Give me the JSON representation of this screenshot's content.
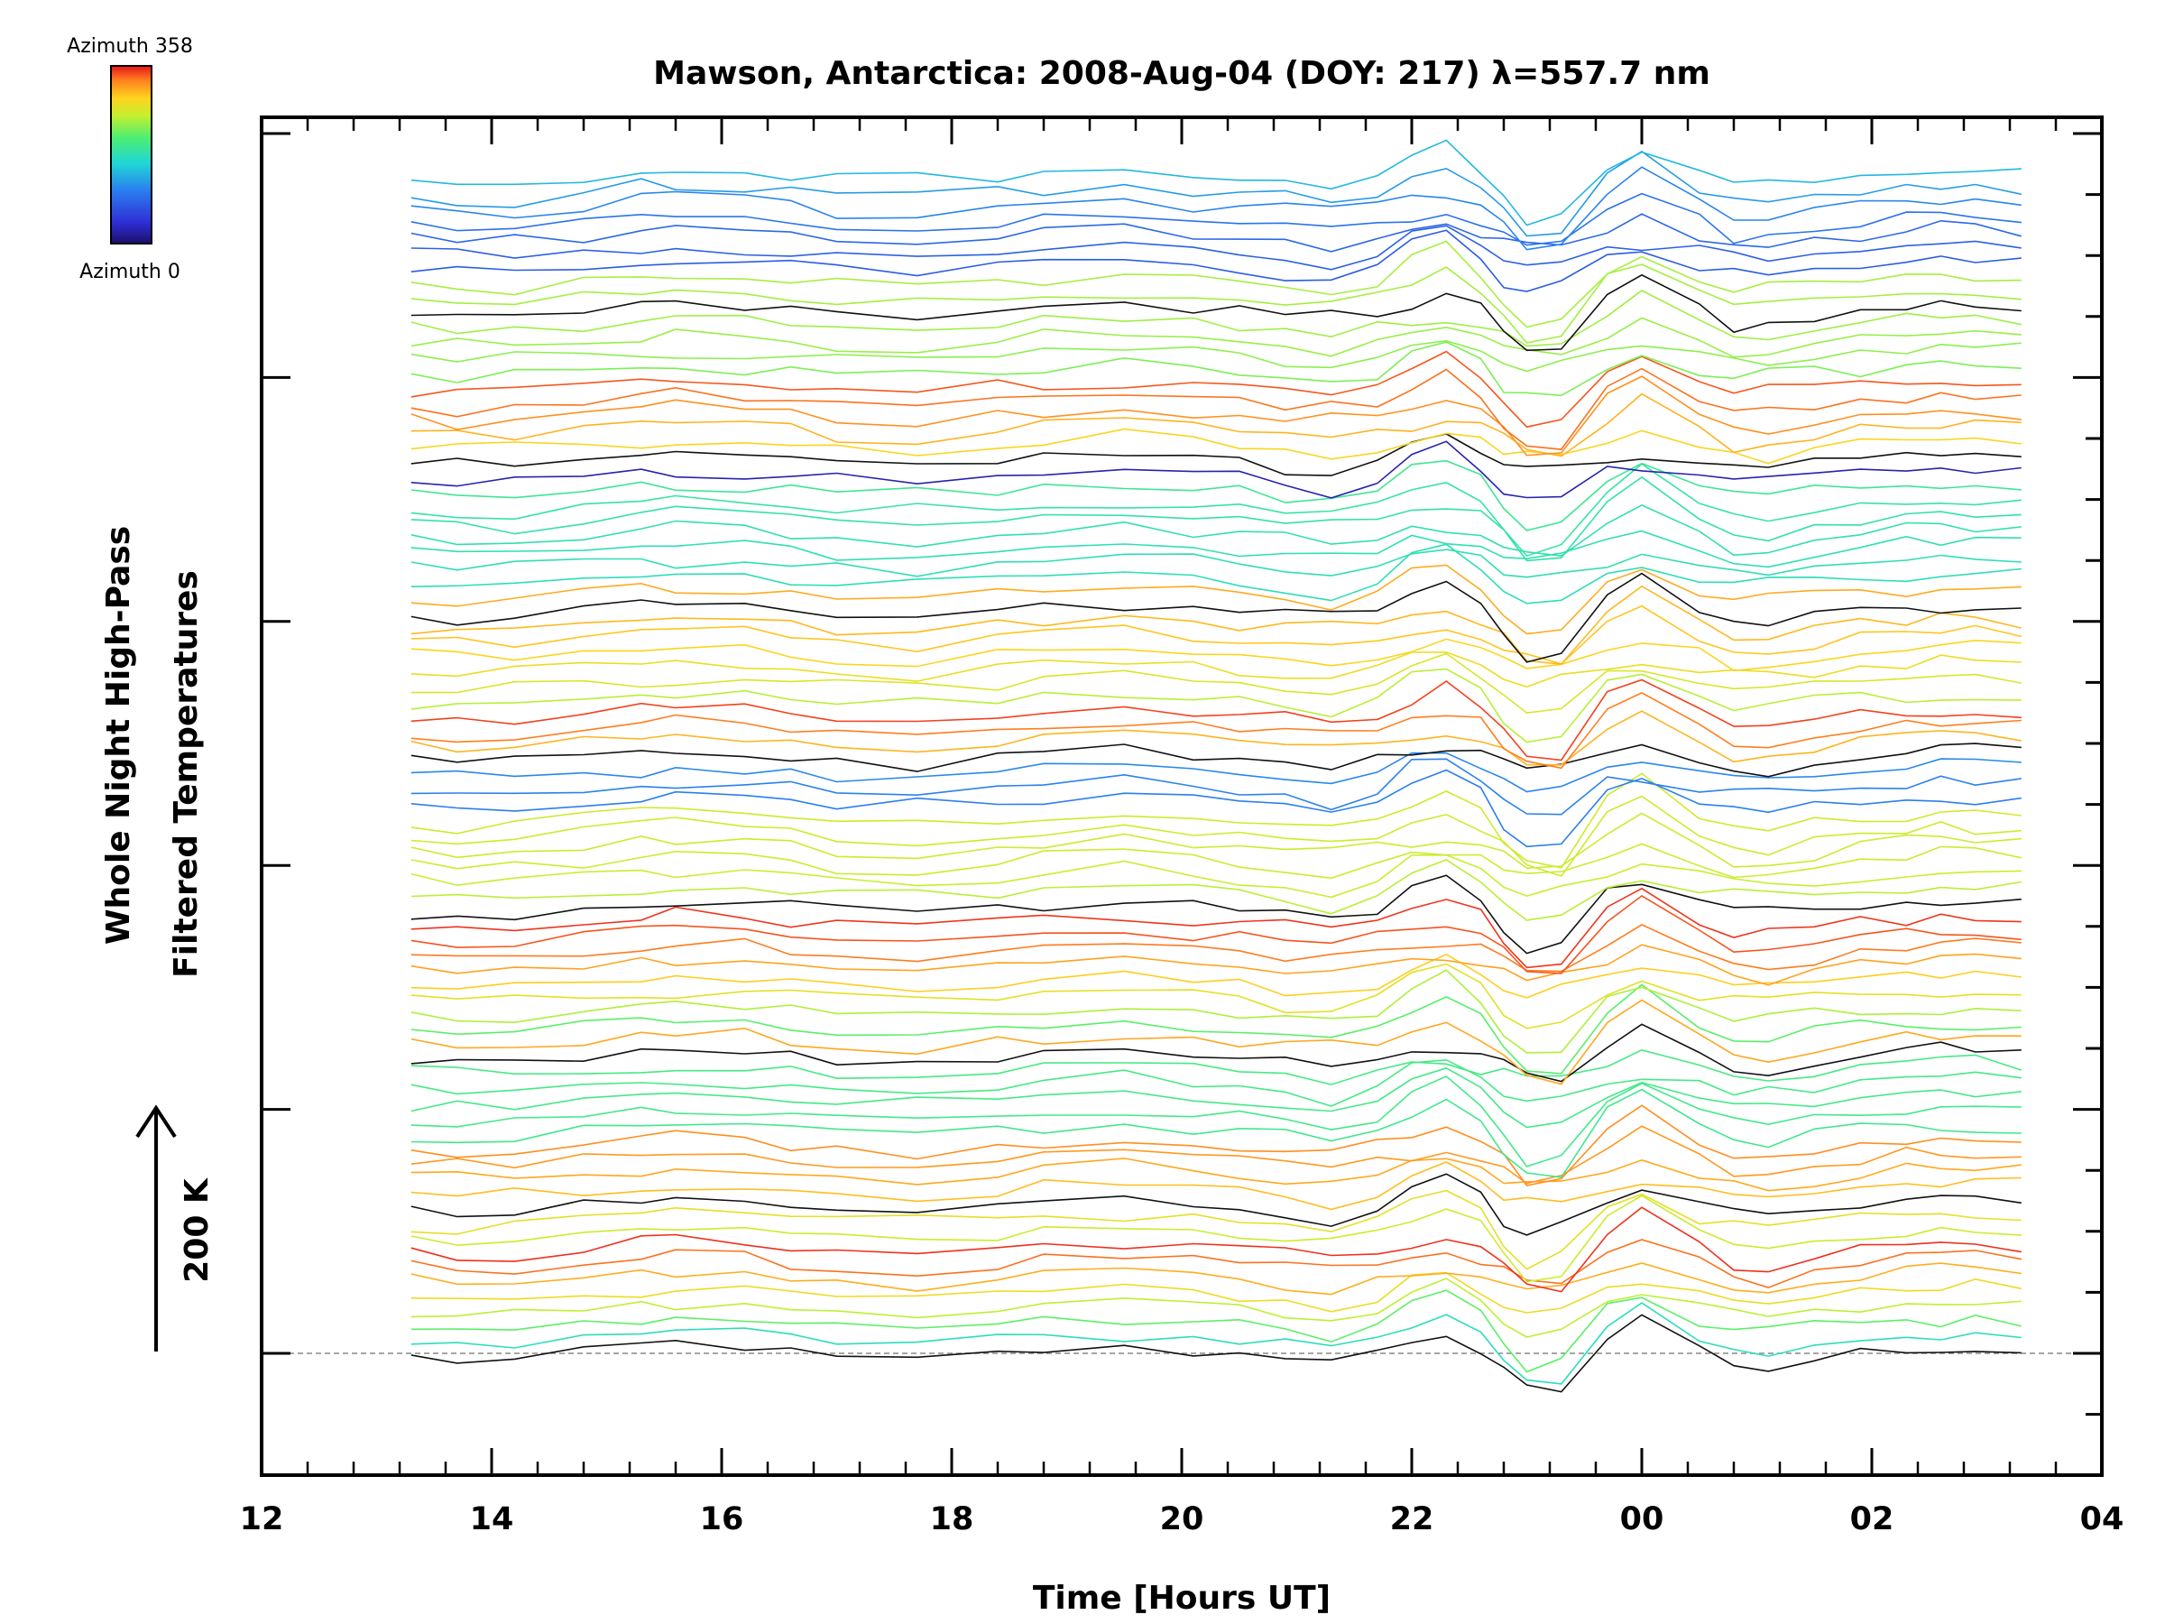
{
  "chart_data": {
    "type": "line",
    "title": "Mawson, Antarctica: 2008-Aug-04 (DOY: 217) λ=557.7 nm",
    "xlabel": "Time [Hours UT]",
    "ylabel_line1": "Whole Night High-Pass",
    "ylabel_line2": "Filtered Temperatures",
    "scale_bar_label": "200 K",
    "x_tick_labels": [
      "12",
      "14",
      "16",
      "18",
      "20",
      "22",
      "00",
      "02",
      "04"
    ],
    "xlim": [
      12,
      28
    ],
    "colorbar": {
      "top_label": "Azimuth 358",
      "bottom_label": "Azimuth 0",
      "colors": [
        "#1b0f6b",
        "#2f2fd6",
        "#2a7fef",
        "#1fd6d6",
        "#4fef6f",
        "#c6ef2f",
        "#ffd21f",
        "#ff7f1f",
        "#e8141c"
      ]
    },
    "baseline_style": "dashed",
    "time_samples": [
      13.3,
      13.7,
      14.2,
      14.8,
      15.3,
      15.6,
      16.2,
      16.6,
      17.0,
      17.7,
      18.4,
      18.8,
      19.5,
      20.1,
      20.5,
      20.9,
      21.3,
      21.7,
      22.0,
      22.3,
      22.6,
      22.8,
      23.0,
      23.3,
      23.7,
      24.0,
      24.5,
      24.8,
      25.1,
      25.5,
      25.9,
      26.3,
      26.6,
      26.9,
      27.3
    ],
    "series_count": 80,
    "series_spacing_K": 18,
    "series_azimuth_step_deg": 18
  }
}
